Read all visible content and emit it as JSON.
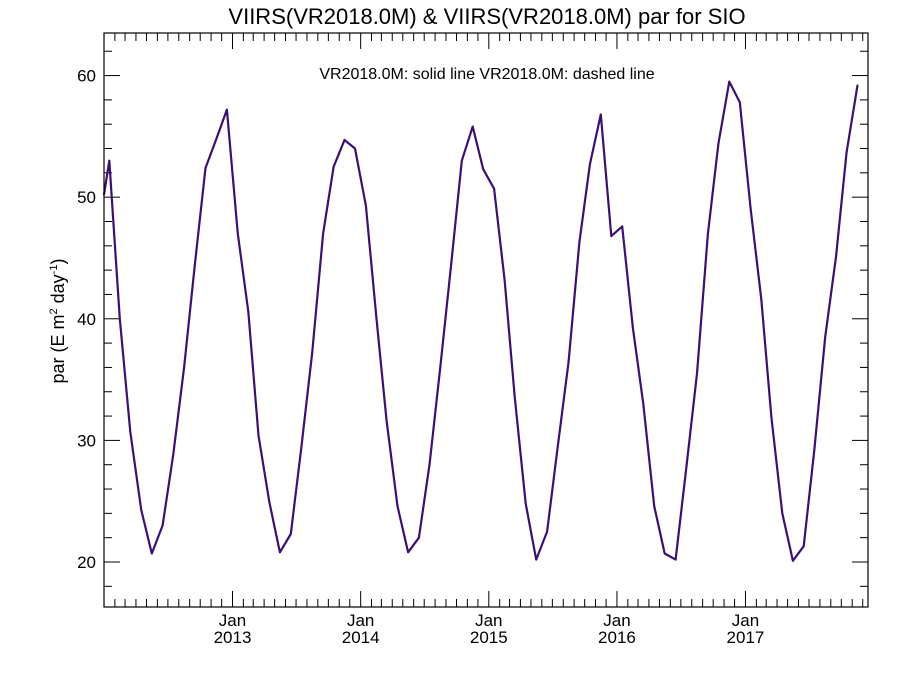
{
  "chart_data": {
    "type": "line",
    "title": "VIIRS(VR2018.0M) & VIIRS(VR2018.0M)  par for SIO",
    "annotation": "VR2018.0M: solid line   VR2018.0M: dashed line",
    "ylabel": {
      "prefix": "par (E m",
      "sup1": "2",
      "middle": " day",
      "sup2": "-1",
      "suffix": ")"
    },
    "xlabel": "",
    "xlim": [
      "2012-01-01",
      "2017-12-16"
    ],
    "ylim": [
      16.3,
      63.5
    ],
    "y_ticks": [
      20,
      30,
      40,
      50,
      60
    ],
    "x_ticks": [
      {
        "date": "2013-01-01",
        "line1": "Jan",
        "line2": "2013"
      },
      {
        "date": "2014-01-01",
        "line1": "Jan",
        "line2": "2014"
      },
      {
        "date": "2015-01-01",
        "line1": "Jan",
        "line2": "2015"
      },
      {
        "date": "2016-01-01",
        "line1": "Jan",
        "line2": "2016"
      },
      {
        "date": "2017-01-01",
        "line1": "Jan",
        "line2": "2017"
      }
    ],
    "grid": false,
    "series": [
      {
        "color": "#3a1078",
        "style": "solid",
        "points": [
          [
            "2012-01-01",
            50.2
          ],
          [
            "2012-01-16",
            53.0
          ],
          [
            "2012-02-15",
            40.0
          ],
          [
            "2012-03-16",
            30.7
          ],
          [
            "2012-04-16",
            24.3
          ],
          [
            "2012-05-16",
            20.7
          ],
          [
            "2012-06-16",
            23.0
          ],
          [
            "2012-07-16",
            28.8
          ],
          [
            "2012-08-16",
            36.0
          ],
          [
            "2012-09-16",
            44.5
          ],
          [
            "2012-10-16",
            52.4
          ],
          [
            "2012-11-16",
            54.8
          ],
          [
            "2012-12-16",
            57.2
          ],
          [
            "2013-01-16",
            47.0
          ],
          [
            "2013-02-15",
            40.6
          ],
          [
            "2013-03-16",
            30.4
          ],
          [
            "2013-04-16",
            24.9
          ],
          [
            "2013-05-16",
            20.8
          ],
          [
            "2013-06-16",
            22.3
          ],
          [
            "2013-07-16",
            29.4
          ],
          [
            "2013-08-16",
            37.2
          ],
          [
            "2013-09-16",
            47.0
          ],
          [
            "2013-10-16",
            52.5
          ],
          [
            "2013-11-16",
            54.7
          ],
          [
            "2013-12-16",
            54.0
          ],
          [
            "2014-01-16",
            49.3
          ],
          [
            "2014-02-15",
            40.0
          ],
          [
            "2014-03-16",
            31.6
          ],
          [
            "2014-04-16",
            24.6
          ],
          [
            "2014-05-16",
            20.8
          ],
          [
            "2014-06-16",
            22.0
          ],
          [
            "2014-07-16",
            28.0
          ],
          [
            "2014-08-16",
            36.1
          ],
          [
            "2014-09-16",
            44.5
          ],
          [
            "2014-10-16",
            53.0
          ],
          [
            "2014-11-16",
            55.8
          ],
          [
            "2014-12-16",
            52.3
          ],
          [
            "2015-01-16",
            50.7
          ],
          [
            "2015-02-15",
            43.2
          ],
          [
            "2015-03-16",
            33.5
          ],
          [
            "2015-04-16",
            24.8
          ],
          [
            "2015-05-16",
            20.2
          ],
          [
            "2015-06-16",
            22.5
          ],
          [
            "2015-07-16",
            29.4
          ],
          [
            "2015-08-16",
            36.4
          ],
          [
            "2015-09-16",
            46.3
          ],
          [
            "2015-10-16",
            52.7
          ],
          [
            "2015-11-16",
            56.8
          ],
          [
            "2015-12-16",
            46.8
          ],
          [
            "2016-01-16",
            47.6
          ],
          [
            "2016-02-15",
            39.3
          ],
          [
            "2016-03-16",
            33.0
          ],
          [
            "2016-04-16",
            24.6
          ],
          [
            "2016-05-16",
            20.7
          ],
          [
            "2016-06-16",
            20.2
          ],
          [
            "2016-07-16",
            27.6
          ],
          [
            "2016-08-16",
            35.5
          ],
          [
            "2016-09-16",
            47.0
          ],
          [
            "2016-10-16",
            54.4
          ],
          [
            "2016-11-16",
            59.5
          ],
          [
            "2016-12-16",
            57.8
          ],
          [
            "2017-01-16",
            49.0
          ],
          [
            "2017-02-15",
            41.6
          ],
          [
            "2017-03-16",
            31.9
          ],
          [
            "2017-04-16",
            24.0
          ],
          [
            "2017-05-16",
            20.1
          ],
          [
            "2017-06-16",
            21.3
          ],
          [
            "2017-07-16",
            29.2
          ],
          [
            "2017-08-16",
            38.5
          ],
          [
            "2017-09-16",
            45.1
          ],
          [
            "2017-10-16",
            53.7
          ],
          [
            "2017-11-16",
            59.2
          ]
        ]
      }
    ]
  }
}
